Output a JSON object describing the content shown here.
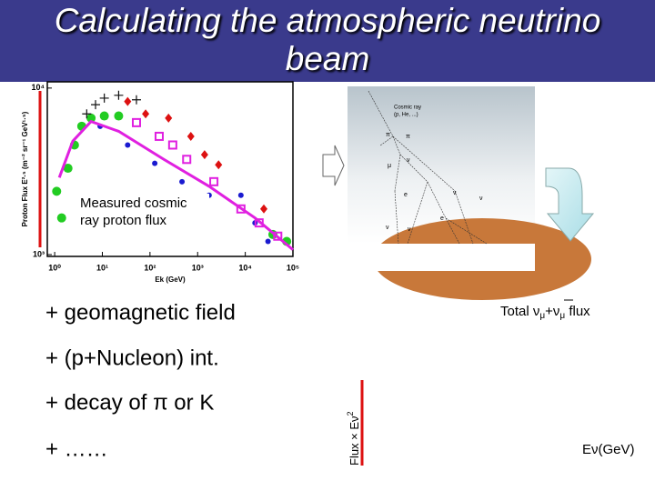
{
  "title": "Calculating the atmospheric neutrino beam",
  "flux_plot": {
    "type": "scatter",
    "xlabel": "Ek (GeV)",
    "ylabel": "Proton Flux E²·⁵ (m⁻² sr⁻¹ GeV¹·⁵)",
    "annotation": "Measured cosmic ray proton flux",
    "log_x": true,
    "log_y": true,
    "xlim": [
      0.7,
      100000
    ],
    "ylim": [
      975,
      10900
    ],
    "xticks": [
      {
        "value": 1,
        "label": "10⁰"
      },
      {
        "value": 10,
        "label": "10¹"
      },
      {
        "value": 100,
        "label": "10²"
      },
      {
        "value": 1000,
        "label": "10³"
      },
      {
        "value": 10000,
        "label": "10⁴"
      },
      {
        "value": 100000,
        "label": "10⁵"
      }
    ],
    "yticks": [
      {
        "value": 1000,
        "label": "10³"
      },
      {
        "value": 10000,
        "label": "10⁴"
      }
    ],
    "fit": {
      "color": "#e020e0",
      "x": [
        1.25,
        2.4,
        5.8,
        22,
        195,
        1740,
        16000,
        100000
      ],
      "values": [
        2900,
        4800,
        6300,
        5500,
        3730,
        2570,
        1660,
        1070
      ]
    },
    "series": [
      {
        "color": "#22cc22",
        "marker": "circle",
        "x": [
          1.1,
          1.4,
          1.9,
          2.6,
          3.7,
          5.8,
          11,
          22,
          38000,
          74000
        ],
        "values": [
          2400,
          1660,
          3300,
          4550,
          5900,
          6600,
          6800,
          6800,
          1320,
          1200
        ]
      },
      {
        "color": "#1a1ad0",
        "marker": "dot",
        "x": [
          9,
          34,
          126,
          470,
          1740,
          8100,
          16000,
          30000
        ],
        "values": [
          5900,
          4550,
          3530,
          2740,
          2270,
          2270,
          1550,
          1200
        ]
      },
      {
        "color": "#e020e0",
        "marker": "square",
        "x": [
          52,
          156,
          300,
          590,
          2190,
          8100,
          19500,
          48000
        ],
        "values": [
          6200,
          5130,
          4550,
          3730,
          2740,
          1880,
          1550,
          1290
        ]
      },
      {
        "color": "#dd1111",
        "marker": "diamond",
        "x": [
          34,
          81,
          245,
          720,
          1400,
          2750,
          24500
        ],
        "values": [
          8300,
          7000,
          6600,
          5130,
          3980,
          3460,
          1880
        ]
      },
      {
        "color": "#111111",
        "marker": "cross",
        "x": [
          4.7,
          7.2,
          11,
          22,
          52
        ],
        "values": [
          7000,
          7950,
          8700,
          9050,
          8500
        ]
      }
    ]
  },
  "shower": {
    "labels": [
      "Cosmic ray",
      "(p, He, ...)",
      "π",
      "π",
      "μ",
      "ν",
      "e",
      "e",
      "ν",
      "ν",
      "ν",
      "ν"
    ]
  },
  "bullets": [
    "+ geomagnetic field",
    "+ (p+Nucleon) int.",
    "+ decay of π or K",
    "+ ……"
  ],
  "flux_label": {
    "pre": "Total ",
    "nu1": "ν",
    "sub1": "μ",
    "plus": "+",
    "nu2": "ν",
    "sub2": "μ",
    "post": " flux"
  },
  "y_axis": {
    "main": "Flux × Eν",
    "sup": "2"
  },
  "x_axis": "Eν(GeV)"
}
